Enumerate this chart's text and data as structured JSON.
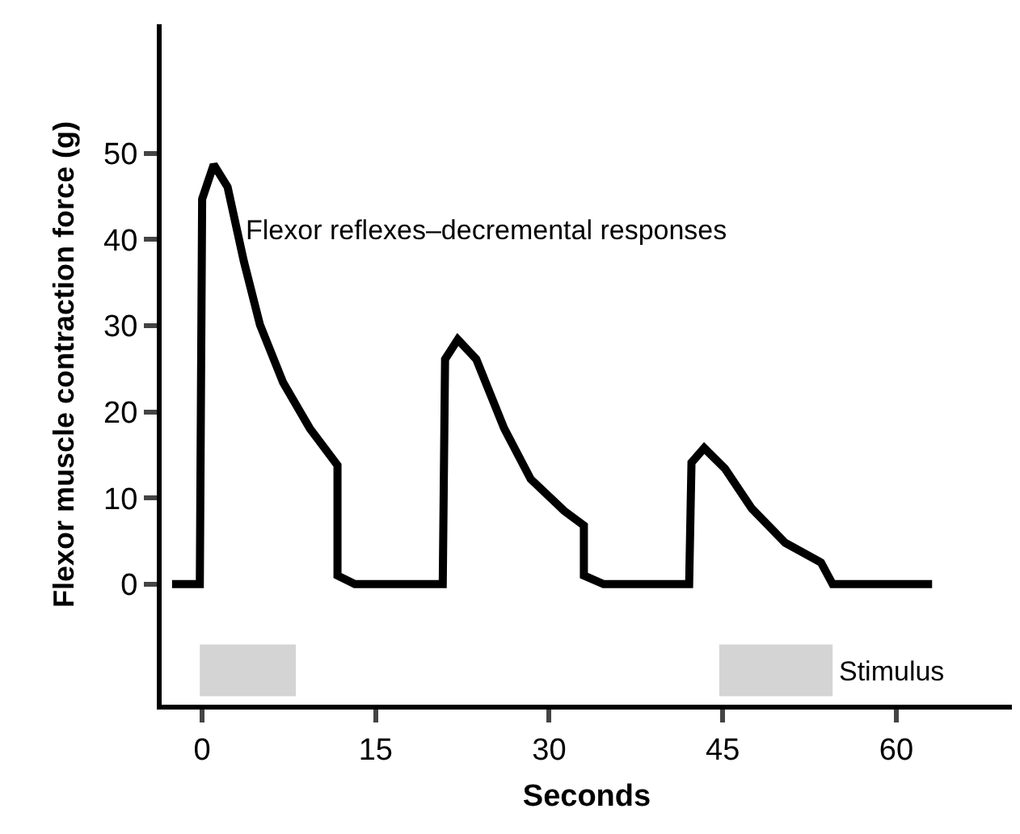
{
  "chart_data": {
    "type": "line",
    "xlabel": "Seconds",
    "ylabel": "Flexor muscle contraction force (g)",
    "xlim": [
      -3.5,
      70
    ],
    "xticks": [
      0,
      15,
      30,
      45,
      60
    ],
    "ylim": [
      -14,
      65
    ],
    "yticks": [
      0,
      10,
      20,
      30,
      40,
      50
    ],
    "marker": "none",
    "line_style": "solid",
    "series": [
      {
        "color": "#000000",
        "x": [
          -2.6,
          -0.2,
          0.0,
          1.0,
          2.2,
          3.6,
          5.0,
          7.0,
          9.3,
          11.7,
          11.7,
          13.2,
          20.8,
          21.0,
          22.1,
          23.7,
          26.1,
          28.4,
          31.3,
          33.0,
          33.0,
          34.7,
          42.1,
          42.3,
          43.4,
          45.2,
          47.5,
          50.4,
          53.5,
          54.5,
          63.1
        ],
        "values": [
          0,
          0,
          44.7,
          48.7,
          46.1,
          37.5,
          30.1,
          23.4,
          18.1,
          13.8,
          1,
          0,
          0,
          26.1,
          28.4,
          26.1,
          18.1,
          12.2,
          8.5,
          6.8,
          1,
          0,
          0,
          14.1,
          15.8,
          13.4,
          8.8,
          4.8,
          2.5,
          0,
          0
        ]
      }
    ],
    "bands": [
      {
        "axis": "x",
        "from": -0.2,
        "to": 8.1,
        "color": "#d4d4d4"
      },
      {
        "axis": "x",
        "from": 44.7,
        "to": 54.5,
        "color": "#d4d4d4",
        "label": "Stimulus"
      }
    ],
    "annotations": [
      {
        "text": "Flexor reflexes–decremental responses",
        "x": 3.5,
        "y": 41
      }
    ]
  }
}
